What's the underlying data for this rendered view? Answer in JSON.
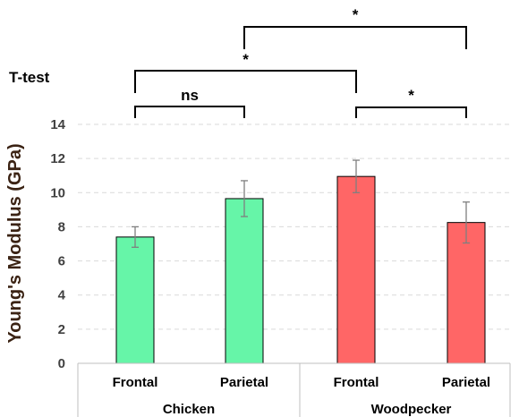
{
  "chart_data": {
    "type": "bar",
    "ylabel": "Young's Modulus (GPa)",
    "ylim": [
      0,
      14
    ],
    "yticks": [
      0,
      2,
      4,
      6,
      8,
      10,
      12,
      14
    ],
    "grid": true,
    "categories": [
      "Frontal",
      "Parietal",
      "Frontal",
      "Parietal"
    ],
    "groups": [
      {
        "name": "Chicken",
        "span": [
          0,
          1
        ]
      },
      {
        "name": "Woodpecker",
        "span": [
          2,
          3
        ]
      }
    ],
    "values": [
      7.4,
      9.65,
      10.95,
      8.25
    ],
    "errors": [
      0.6,
      1.05,
      0.95,
      1.2
    ],
    "colors": [
      "#66f5a8",
      "#66f5a8",
      "#ff6666",
      "#ff6666"
    ],
    "annotation_title": "T-test",
    "significance": [
      {
        "from": 0,
        "to": 1,
        "label": "ns"
      },
      {
        "from": 0,
        "to": 2,
        "label": "*"
      },
      {
        "from": 1,
        "to": 3,
        "label": "*"
      },
      {
        "from": 2,
        "to": 3,
        "label": "*"
      }
    ]
  }
}
